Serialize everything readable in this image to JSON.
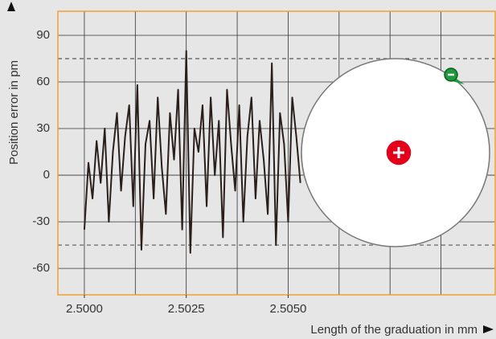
{
  "chart_data": {
    "type": "line",
    "ylabel": "Position error in pm",
    "xlabel": "Length of the graduation in mm",
    "x": [
      2.5,
      2.5001,
      2.5002,
      2.5003,
      2.5004,
      2.5005,
      2.5006,
      2.5007,
      2.5008,
      2.5009,
      2.501,
      2.5011,
      2.5012,
      2.5013,
      2.5014,
      2.5015,
      2.5016,
      2.5017,
      2.5018,
      2.5019,
      2.502,
      2.5021,
      2.5022,
      2.5023,
      2.5024,
      2.5025,
      2.5026,
      2.5027,
      2.5028,
      2.5029,
      2.503,
      2.5031,
      2.5032,
      2.5033,
      2.5034,
      2.5035,
      2.5036,
      2.5037,
      2.5038,
      2.5039,
      2.504,
      2.5041,
      2.5042,
      2.5043,
      2.5044,
      2.5045,
      2.5046,
      2.5047,
      2.5048,
      2.5049,
      2.505,
      2.5051,
      2.5052,
      2.5053
    ],
    "series": [
      {
        "color": "#2a1f1a",
        "values": [
          -35,
          8,
          -15,
          22,
          -5,
          30,
          -30,
          15,
          40,
          -10,
          25,
          45,
          -20,
          58,
          -48,
          20,
          35,
          -15,
          50,
          5,
          -25,
          40,
          10,
          55,
          -35,
          80,
          -50,
          30,
          15,
          45,
          -20,
          50,
          0,
          35,
          -40,
          55,
          20,
          -10,
          45,
          -30,
          25,
          50,
          -15,
          35,
          10,
          -25,
          72,
          -45,
          40,
          20,
          -30,
          50,
          25,
          -5
        ]
      }
    ],
    "xlim": [
      2.49935,
      2.51008
    ],
    "ylim": [
      -77,
      105.5
    ],
    "xticks": [
      {
        "value": 2.5,
        "label": "2.5000"
      },
      {
        "value": 2.5025,
        "label": "2.5025"
      },
      {
        "value": 2.505,
        "label": "2.5050"
      }
    ],
    "xgrid": [
      2.5,
      2.50125,
      2.5025,
      2.50375,
      2.505,
      2.50625,
      2.5075,
      2.50875
    ],
    "yticks": [
      -60,
      -30,
      0,
      30,
      60,
      90
    ],
    "limits": [
      75,
      -45
    ],
    "grid": true
  }
}
